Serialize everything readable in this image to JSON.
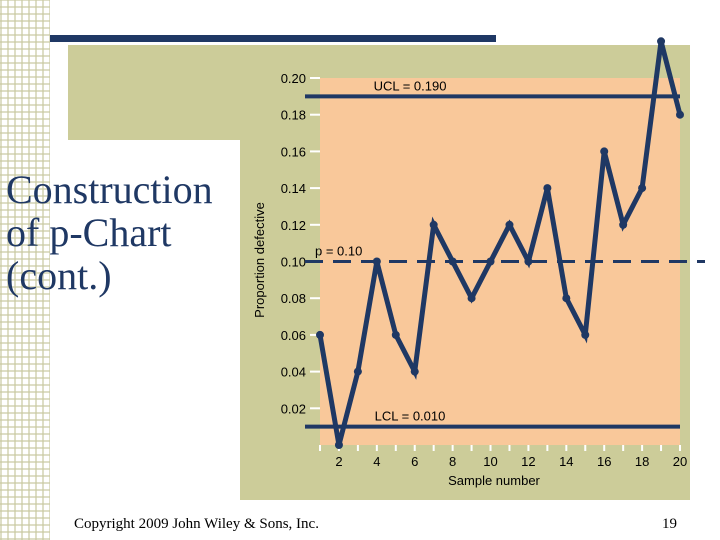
{
  "slide": {
    "title": "Construction of p-Chart (cont.)",
    "footer": "Copyright 2009 John Wiley & Sons, Inc.",
    "page_number": "19"
  },
  "colors": {
    "plot_bg": "#f9c89a",
    "line": "#1f3864",
    "panel": "#cccc99"
  },
  "chart_data": {
    "type": "line",
    "xlabel": "Sample number",
    "ylabel": "Proportion defective",
    "x": [
      1,
      2,
      3,
      4,
      5,
      6,
      7,
      8,
      9,
      10,
      11,
      12,
      13,
      14,
      15,
      16,
      17,
      18,
      19,
      20
    ],
    "values": [
      0.06,
      0.0,
      0.04,
      0.1,
      0.06,
      0.04,
      0.12,
      0.1,
      0.08,
      0.1,
      0.12,
      0.1,
      0.14,
      0.08,
      0.06,
      0.16,
      0.12,
      0.14,
      0.22,
      0.18
    ],
    "xlim": [
      1,
      20
    ],
    "ylim": [
      0,
      0.2
    ],
    "xticks": [
      2,
      4,
      6,
      8,
      10,
      12,
      14,
      16,
      18,
      20
    ],
    "xtick_labels": [
      "2",
      "4",
      "6",
      "8",
      "10",
      "12",
      "14",
      "16",
      "18",
      "20"
    ],
    "yticks": [
      0.02,
      0.04,
      0.06,
      0.08,
      0.1,
      0.12,
      0.14,
      0.16,
      0.18,
      0.2
    ],
    "ytick_labels": [
      "0.02",
      "0.04",
      "0.06",
      "0.08",
      "0.10",
      "0.12",
      "0.14",
      "0.16",
      "0.18",
      "0.20"
    ],
    "ucl": 0.19,
    "center": 0.1,
    "lcl": 0.01,
    "ucl_label": "UCL = 0.190",
    "center_label": "p = 0.10",
    "lcl_label": "LCL = 0.010"
  }
}
